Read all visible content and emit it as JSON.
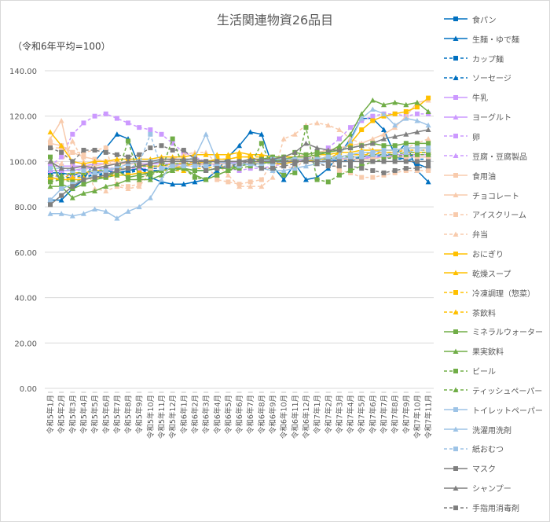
{
  "chart_data": {
    "type": "line",
    "title": "生活関連物資26品目",
    "subtitle": "（令和6年平均=100）",
    "xlabel": "",
    "ylabel": "",
    "ylim": [
      0,
      140
    ],
    "yticks": [
      "0.00",
      "20.00",
      "40.00",
      "60.00",
      "80.00",
      "100.00",
      "120.00",
      "140.00"
    ],
    "grid": true,
    "legend_position": "right",
    "categories": [
      "令和5年1月",
      "令和5年2月",
      "令和5年3月",
      "令和5年4月",
      "令和5年5月",
      "令和5年6月",
      "令和5年7月",
      "令和5年8月",
      "令和5年9月",
      "令和5年10月",
      "令和5年11月",
      "令和5年12月",
      "令和6年1月",
      "令和6年2月",
      "令和6年3月",
      "令和6年4月",
      "令和6年5月",
      "令和6年6月",
      "令和6年7月",
      "令和6年8月",
      "令和6年9月",
      "令和6年10月",
      "令和6年11月",
      "令和6年12月",
      "令和7年1月",
      "令和7年2月",
      "令和7年3月",
      "令和7年4月",
      "令和7年5月",
      "令和7年6月",
      "令和7年7月",
      "令和7年8月",
      "令和7年9月",
      "令和7年10月",
      "令和7年11月"
    ],
    "series": [
      {
        "name": "食パン",
        "color": "#0070C0",
        "marker": "square",
        "dash": false,
        "values": [
          95,
          95,
          94,
          95,
          95,
          96,
          95,
          96,
          97,
          96,
          96,
          97,
          97,
          96,
          96,
          97,
          98,
          98,
          99,
          100,
          100,
          99,
          100,
          101,
          101,
          101,
          100,
          100,
          102,
          103,
          103,
          102,
          101,
          99,
          97
        ]
      },
      {
        "name": "生麺・ゆで麺",
        "color": "#0070C0",
        "marker": "triangle",
        "dash": false,
        "values": [
          83,
          83,
          88,
          92,
          100,
          106,
          112,
          110,
          98,
          93,
          91,
          90,
          90,
          91,
          92,
          96,
          102,
          107,
          113,
          112,
          98,
          92,
          99,
          92,
          93,
          97,
          103,
          110,
          119,
          119,
          114,
          103,
          108,
          96,
          91
        ]
      },
      {
        "name": "カップ麺",
        "color": "#0070C0",
        "marker": "square",
        "dash": true,
        "values": [
          92,
          92,
          93,
          93,
          94,
          94,
          95,
          95,
          96,
          96,
          96,
          97,
          98,
          98,
          99,
          99,
          100,
          100,
          100,
          101,
          101,
          100,
          101,
          100,
          101,
          101,
          100,
          101,
          101,
          102,
          102,
          101,
          101,
          101,
          101
        ]
      },
      {
        "name": "ソーセージ",
        "color": "#0070C0",
        "marker": "triangle",
        "dash": true,
        "values": [
          94,
          93,
          93,
          94,
          94,
          95,
          95,
          96,
          96,
          97,
          97,
          97,
          98,
          98,
          98,
          99,
          99,
          100,
          100,
          100,
          101,
          101,
          101,
          100,
          100,
          100,
          101,
          101,
          102,
          102,
          103,
          103,
          102,
          103,
          103
        ]
      },
      {
        "name": "牛乳",
        "color": "#CC99FF",
        "marker": "square",
        "dash": false,
        "values": [
          98,
          98,
          98,
          98,
          99,
          99,
          99,
          99,
          99,
          99,
          99,
          99,
          99,
          99,
          99,
          99,
          99,
          100,
          100,
          100,
          100,
          100,
          100,
          101,
          101,
          101,
          101,
          102,
          102,
          102,
          102,
          103,
          103,
          103,
          103
        ]
      },
      {
        "name": "ヨーグルト",
        "color": "#CC99FF",
        "marker": "triangle",
        "dash": false,
        "values": [
          96,
          96,
          96,
          97,
          97,
          97,
          97,
          97,
          98,
          98,
          98,
          98,
          99,
          99,
          99,
          99,
          100,
          100,
          100,
          100,
          100,
          100,
          101,
          101,
          101,
          101,
          101,
          101,
          101,
          102,
          102,
          102,
          102,
          102,
          102
        ]
      },
      {
        "name": "卵",
        "color": "#CC99FF",
        "marker": "square",
        "dash": true,
        "values": [
          98,
          102,
          112,
          117,
          120,
          121,
          119,
          117,
          115,
          114,
          112,
          108,
          104,
          102,
          100,
          98,
          97,
          96,
          97,
          97,
          98,
          99,
          100,
          101,
          103,
          106,
          110,
          115,
          118,
          120,
          121,
          121,
          120,
          121,
          121
        ]
      },
      {
        "name": "豆腐・豆腐製品",
        "color": "#CC99FF",
        "marker": "triangle",
        "dash": true,
        "values": [
          93,
          94,
          94,
          95,
          95,
          96,
          96,
          97,
          97,
          97,
          98,
          98,
          98,
          99,
          99,
          99,
          99,
          100,
          100,
          100,
          100,
          100,
          101,
          101,
          101,
          102,
          102,
          103,
          103,
          104,
          104,
          104,
          105,
          105,
          105
        ]
      },
      {
        "name": "食用油",
        "color": "#F8CBAD",
        "marker": "square",
        "dash": false,
        "values": [
          108,
          107,
          104,
          102,
          101,
          100,
          100,
          99,
          99,
          98,
          98,
          98,
          98,
          98,
          99,
          99,
          99,
          99,
          99,
          100,
          100,
          100,
          101,
          101,
          101,
          101,
          101,
          101,
          101,
          101,
          102,
          102,
          102,
          102,
          102
        ]
      },
      {
        "name": "チョコレート",
        "color": "#F8CBAD",
        "marker": "triangle",
        "dash": false,
        "values": [
          110,
          118,
          97,
          98,
          98,
          99,
          99,
          99,
          100,
          100,
          101,
          101,
          100,
          100,
          99,
          99,
          99,
          99,
          100,
          100,
          101,
          102,
          102,
          103,
          104,
          105,
          106,
          107,
          108,
          110,
          112,
          115,
          120,
          126,
          127
        ]
      },
      {
        "name": "アイスクリーム",
        "color": "#F8CBAD",
        "marker": "square",
        "dash": true,
        "values": [
          106,
          106,
          104,
          104,
          105,
          106,
          90,
          89,
          90,
          97,
          98,
          98,
          100,
          100,
          99,
          92,
          91,
          90,
          91,
          92,
          100,
          98,
          97,
          101,
          102,
          102,
          96,
          95,
          93,
          93,
          94,
          95,
          96,
          96,
          96
        ]
      },
      {
        "name": "弁当",
        "color": "#F8CBAD",
        "marker": "triangle",
        "dash": true,
        "values": [
          100,
          99,
          109,
          100,
          88,
          87,
          89,
          88,
          89,
          95,
          100,
          101,
          103,
          104,
          104,
          99,
          94,
          89,
          89,
          89,
          93,
          110,
          112,
          116,
          117,
          116,
          114,
          110,
          108,
          105,
          103,
          104,
          106,
          108,
          110
        ]
      },
      {
        "name": "おにぎり",
        "color": "#FFC000",
        "marker": "square",
        "dash": false,
        "values": [
          93,
          92,
          92,
          92,
          93,
          93,
          94,
          94,
          95,
          95,
          96,
          97,
          98,
          99,
          100,
          101,
          101,
          102,
          102,
          100,
          99,
          99,
          100,
          100,
          101,
          101,
          104,
          108,
          114,
          118,
          120,
          121,
          122,
          124,
          128
        ]
      },
      {
        "name": "乾燥スープ",
        "color": "#FFC000",
        "marker": "triangle",
        "dash": false,
        "values": [
          113,
          107,
          100,
          99,
          100,
          100,
          101,
          101,
          101,
          101,
          102,
          102,
          102,
          103,
          103,
          103,
          103,
          104,
          103,
          103,
          102,
          102,
          102,
          102,
          103,
          103,
          104,
          104,
          105,
          105,
          105,
          105,
          106,
          106,
          106
        ]
      },
      {
        "name": "冷凍調理（惣菜）",
        "color": "#FFC000",
        "marker": "square",
        "dash": true,
        "values": [
          93,
          92,
          95,
          95,
          96,
          96,
          97,
          97,
          98,
          98,
          98,
          99,
          99,
          100,
          100,
          101,
          101,
          102,
          102,
          102,
          101,
          101,
          101,
          101,
          101,
          102,
          102,
          103,
          103,
          103,
          104,
          104,
          104,
          104,
          104
        ]
      },
      {
        "name": "茶飲料",
        "color": "#FFC000",
        "marker": "triangle",
        "dash": true,
        "values": [
          92,
          92,
          93,
          93,
          93,
          94,
          94,
          94,
          95,
          95,
          96,
          96,
          96,
          97,
          97,
          98,
          98,
          98,
          99,
          99,
          100,
          100,
          101,
          101,
          101,
          102,
          102,
          103,
          103,
          104,
          104,
          104,
          105,
          105,
          105
        ]
      },
      {
        "name": "ミネラルウォーター",
        "color": "#70AD47",
        "marker": "square",
        "dash": false,
        "values": [
          102,
          90,
          88,
          90,
          92,
          93,
          96,
          93,
          94,
          95,
          96,
          97,
          97,
          96,
          96,
          97,
          97,
          98,
          99,
          101,
          102,
          102,
          104,
          103,
          104,
          104,
          105,
          106,
          107,
          108,
          107,
          107,
          108,
          108,
          108
        ]
      },
      {
        "name": "果実飲料",
        "color": "#70AD47",
        "marker": "triangle",
        "dash": false,
        "values": [
          89,
          89,
          84,
          86,
          87,
          89,
          90,
          92,
          92,
          92,
          94,
          96,
          97,
          94,
          92,
          94,
          96,
          98,
          99,
          99,
          100,
          101,
          102,
          102,
          103,
          104,
          107,
          112,
          121,
          127,
          125,
          126,
          125,
          126,
          122
        ]
      },
      {
        "name": "ビール",
        "color": "#70AD47",
        "marker": "square",
        "dash": true,
        "values": [
          91,
          92,
          91,
          92,
          93,
          93,
          94,
          109,
          93,
          94,
          96,
          110,
          97,
          93,
          92,
          94,
          96,
          97,
          98,
          108,
          97,
          94,
          95,
          115,
          92,
          91,
          94,
          96,
          98,
          100,
          101,
          102,
          103,
          103,
          103
        ]
      },
      {
        "name": "ティッシュペーパー",
        "color": "#70AD47",
        "marker": "triangle",
        "dash": true,
        "values": [
          94,
          94,
          95,
          95,
          96,
          96,
          97,
          97,
          98,
          98,
          98,
          99,
          99,
          99,
          99,
          100,
          100,
          100,
          100,
          100,
          100,
          100,
          101,
          101,
          101,
          101,
          102,
          102,
          102,
          103,
          103,
          103,
          104,
          104,
          104
        ]
      },
      {
        "name": "トイレットペーパー",
        "color": "#9DC3E6",
        "marker": "square",
        "dash": false,
        "values": [
          83,
          88,
          90,
          92,
          94,
          96,
          97,
          99,
          100,
          100,
          100,
          100,
          100,
          100,
          100,
          100,
          100,
          100,
          100,
          100,
          101,
          101,
          101,
          101,
          101,
          102,
          102,
          103,
          104,
          104,
          105,
          105,
          106,
          106,
          106
        ]
      },
      {
        "name": "洗濯用洗剤",
        "color": "#9DC3E6",
        "marker": "triangle",
        "dash": false,
        "values": [
          77,
          77,
          76,
          77,
          79,
          78,
          75,
          78,
          80,
          84,
          92,
          100,
          100,
          102,
          112,
          100,
          99,
          99,
          99,
          97,
          96,
          96,
          97,
          98,
          99,
          100,
          103,
          109,
          119,
          123,
          121,
          116,
          119,
          118,
          116
        ]
      },
      {
        "name": "紙おむつ",
        "color": "#9DC3E6",
        "marker": "square",
        "dash": true,
        "values": [
          97,
          97,
          96,
          96,
          96,
          97,
          97,
          97,
          99,
          112,
          97,
          98,
          98,
          98,
          98,
          98,
          98,
          98,
          99,
          99,
          99,
          100,
          100,
          100,
          100,
          101,
          101,
          102,
          102,
          103,
          103,
          104,
          104,
          105,
          105
        ]
      },
      {
        "name": "マスク",
        "color": "#7F7F7F",
        "marker": "square",
        "dash": false,
        "values": [
          81,
          85,
          89,
          92,
          93,
          94,
          96,
          97,
          98,
          99,
          100,
          100,
          100,
          100,
          100,
          100,
          100,
          100,
          100,
          100,
          100,
          100,
          100,
          100,
          100,
          100,
          100,
          100,
          100,
          100,
          100,
          100,
          100,
          100,
          100
        ]
      },
      {
        "name": "シャンプー",
        "color": "#7F7F7F",
        "marker": "triangle",
        "dash": false,
        "values": [
          100,
          97,
          97,
          98,
          97,
          98,
          99,
          100,
          100,
          100,
          101,
          101,
          101,
          101,
          100,
          100,
          100,
          100,
          101,
          101,
          101,
          102,
          104,
          108,
          106,
          105,
          105,
          106,
          107,
          108,
          110,
          111,
          112,
          113,
          114
        ]
      },
      {
        "name": "手指用消毒剤",
        "color": "#7F7F7F",
        "marker": "square",
        "dash": true,
        "values": [
          106,
          104,
          100,
          105,
          105,
          104,
          103,
          102,
          103,
          106,
          107,
          105,
          105,
          101,
          96,
          97,
          98,
          99,
          100,
          97,
          97,
          98,
          99,
          101,
          99,
          98,
          98,
          98,
          97,
          96,
          95,
          96,
          97,
          97,
          98
        ]
      }
    ]
  }
}
